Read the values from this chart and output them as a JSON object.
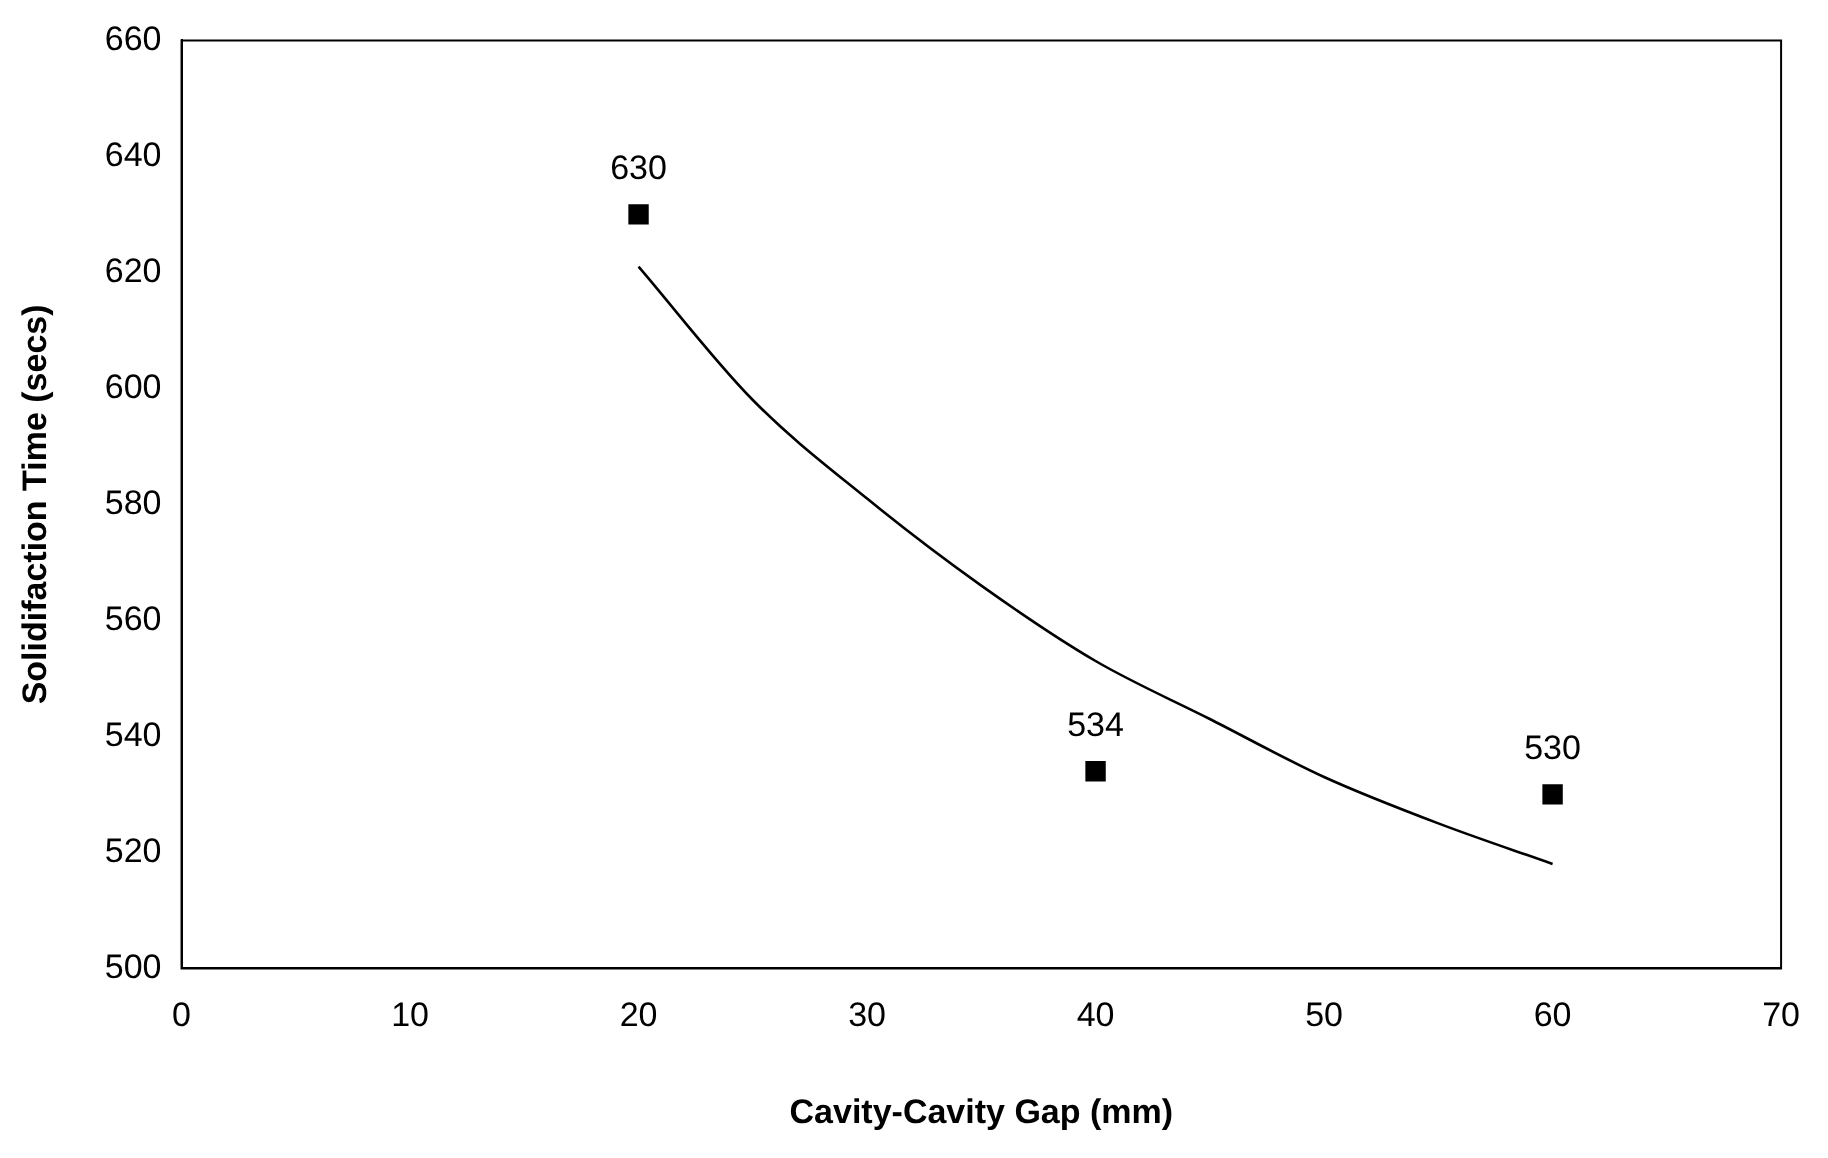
{
  "chart_data": {
    "type": "scatter",
    "xlabel": "Cavity-Cavity Gap (mm)",
    "ylabel": "Solidifaction Time (secs)",
    "xlim": [
      0,
      70
    ],
    "xticks": [
      0,
      10,
      20,
      30,
      40,
      50,
      60,
      70
    ],
    "ylim": [
      500,
      660
    ],
    "yticks": [
      500,
      520,
      540,
      560,
      580,
      600,
      620,
      640,
      660
    ],
    "grid": false,
    "legend": false,
    "series": [
      {
        "color": "#000000",
        "marker": "square",
        "x": [
          20,
          40,
          60
        ],
        "values": [
          630,
          534,
          530
        ],
        "value_labels": [
          "630",
          "534",
          "530"
        ]
      },
      {
        "type": "line",
        "color": "#000000",
        "marker": "none",
        "x": [
          20,
          25,
          30,
          35,
          40,
          45,
          50,
          55,
          60
        ],
        "values": [
          621,
          598,
          581,
          566,
          553,
          543,
          533,
          525,
          518
        ]
      }
    ]
  }
}
